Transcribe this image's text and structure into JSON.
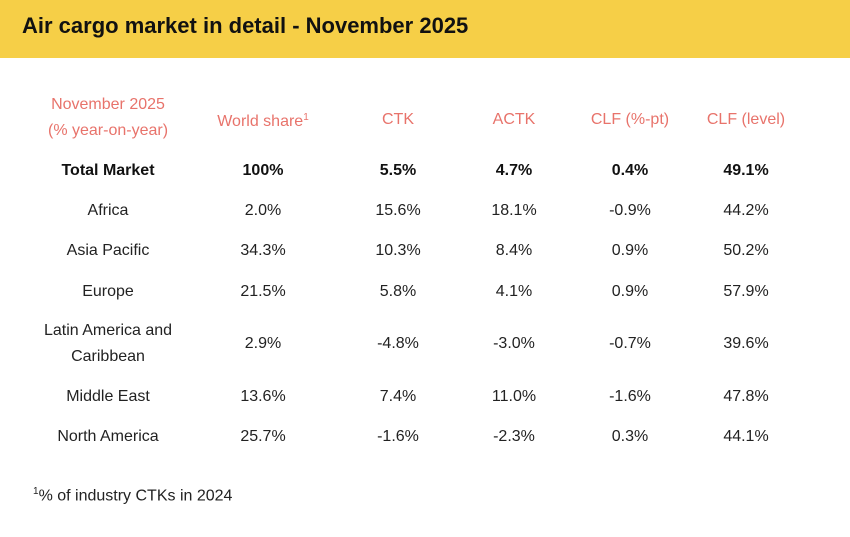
{
  "header": {
    "title": "Air cargo market in detail - November 2025"
  },
  "table": {
    "corner_header": [
      "November 2025",
      "(% year-on-year)"
    ],
    "headers": [
      {
        "text": "World share",
        "note": "1"
      },
      {
        "text": "CTK"
      },
      {
        "text": "ACTK"
      },
      {
        "text": "CLF (%-pt)"
      },
      {
        "text": "CLF (level)"
      }
    ],
    "rows": [
      {
        "label": "Total Market",
        "cells": [
          "100%",
          "5.5%",
          "4.7%",
          "0.4%",
          "49.1%"
        ]
      },
      {
        "label": "Africa",
        "cells": [
          "2.0%",
          "15.6%",
          "18.1%",
          "-0.9%",
          "44.2%"
        ]
      },
      {
        "label": "Asia Pacific",
        "cells": [
          "34.3%",
          "10.3%",
          "8.4%",
          "0.9%",
          "50.2%"
        ]
      },
      {
        "label": "Europe",
        "cells": [
          "21.5%",
          "5.8%",
          "4.1%",
          "0.9%",
          "57.9%"
        ]
      },
      {
        "label": "Latin America and Caribbean",
        "cells": [
          "2.9%",
          "-4.8%",
          "-3.0%",
          "-0.7%",
          "39.6%"
        ]
      },
      {
        "label": "Middle East",
        "cells": [
          "13.6%",
          "7.4%",
          "11.0%",
          "-1.6%",
          "47.8%"
        ]
      },
      {
        "label": "North America",
        "cells": [
          "25.7%",
          "-1.6%",
          "-2.3%",
          "0.3%",
          "44.1%"
        ]
      }
    ]
  },
  "footnote": {
    "mark": "1",
    "text": "% of industry CTKs in 2024"
  }
}
